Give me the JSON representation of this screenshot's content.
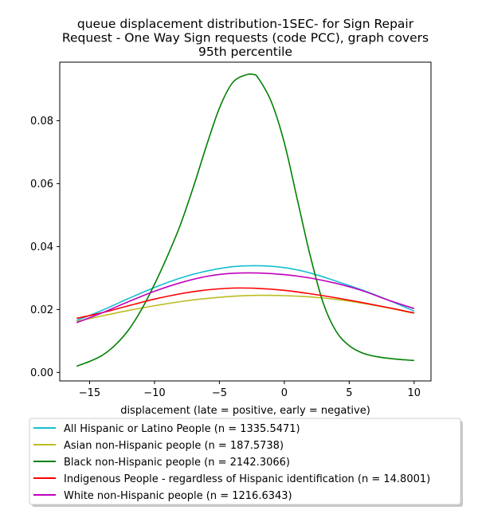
{
  "chart_data": {
    "type": "line",
    "title_lines": [
      "queue displacement distribution-1SEC-  for Sign Repair",
      "Request - One Way Sign  requests (code PCC), graph covers",
      "95th percentile"
    ],
    "xlabel": "displacement (late = positive, early = negative)",
    "ylabel": "",
    "xlim": [
      -17.3,
      11.3
    ],
    "ylim": [
      -0.0027,
      0.0986
    ],
    "xticks": [
      -15,
      -10,
      -5,
      0,
      5,
      10
    ],
    "xtick_labels": [
      "−15",
      "−10",
      "−5",
      "0",
      "5",
      "10"
    ],
    "yticks": [
      0.0,
      0.02,
      0.04,
      0.06,
      0.08
    ],
    "ytick_labels": [
      "0.00",
      "0.02",
      "0.04",
      "0.06",
      "0.08"
    ],
    "grid": false,
    "legend_position": "below",
    "series": [
      {
        "name": "All Hispanic or Latino People (n = 1335.5471)",
        "color": "#17becf",
        "x": [
          -16,
          -14,
          -12,
          -10,
          -8,
          -6,
          -4,
          -2,
          0,
          2,
          4,
          6,
          8,
          10
        ],
        "y": [
          0.0165,
          0.0198,
          0.0235,
          0.027,
          0.03,
          0.0322,
          0.0336,
          0.0339,
          0.0333,
          0.0316,
          0.029,
          0.0262,
          0.023,
          0.0195
        ]
      },
      {
        "name": "Asian non-Hispanic people (n = 187.5738)",
        "color": "#bcbd22",
        "x": [
          -16,
          -14,
          -12,
          -10,
          -8,
          -6,
          -4,
          -2,
          0,
          2,
          4,
          6,
          8,
          10
        ],
        "y": [
          0.0162,
          0.018,
          0.0197,
          0.0212,
          0.0225,
          0.0235,
          0.0242,
          0.0245,
          0.0244,
          0.024,
          0.0232,
          0.022,
          0.0205,
          0.0188
        ]
      },
      {
        "name": "Black non-Hispanic people (n = 2142.3066)",
        "color": "#008000",
        "x": [
          -16,
          -15,
          -14,
          -13,
          -12,
          -11,
          -10,
          -9,
          -8,
          -7,
          -6,
          -5,
          -4,
          -3,
          -2.4,
          -2,
          -1,
          0,
          1,
          2,
          3,
          4,
          5,
          6,
          7,
          8,
          9,
          10
        ],
        "y": [
          0.002,
          0.0035,
          0.0055,
          0.0088,
          0.0135,
          0.02,
          0.028,
          0.037,
          0.047,
          0.059,
          0.072,
          0.084,
          0.092,
          0.0945,
          0.0947,
          0.0935,
          0.086,
          0.073,
          0.055,
          0.037,
          0.022,
          0.013,
          0.0085,
          0.0062,
          0.0051,
          0.0045,
          0.0041,
          0.0038
        ]
      },
      {
        "name": "Indigenous People - regardless of Hispanic identification (n = 14.8001)",
        "color": "#ff0000",
        "x": [
          -16,
          -14,
          -12,
          -10,
          -8,
          -6,
          -4,
          -2,
          0,
          2,
          4,
          6,
          8,
          10
        ],
        "y": [
          0.0172,
          0.019,
          0.0212,
          0.0233,
          0.025,
          0.0262,
          0.0268,
          0.0267,
          0.0261,
          0.025,
          0.0237,
          0.0222,
          0.0206,
          0.0189
        ]
      },
      {
        "name": "White non-Hispanic people (n = 1216.6343)",
        "color": "#bf00bf",
        "x": [
          -16,
          -14,
          -12,
          -10,
          -8,
          -6,
          -4,
          -2,
          0,
          2,
          4,
          6,
          8,
          10
        ],
        "y": [
          0.0158,
          0.019,
          0.0225,
          0.0258,
          0.0285,
          0.0305,
          0.0315,
          0.0316,
          0.0311,
          0.03,
          0.0283,
          0.026,
          0.023,
          0.0203
        ]
      }
    ]
  }
}
